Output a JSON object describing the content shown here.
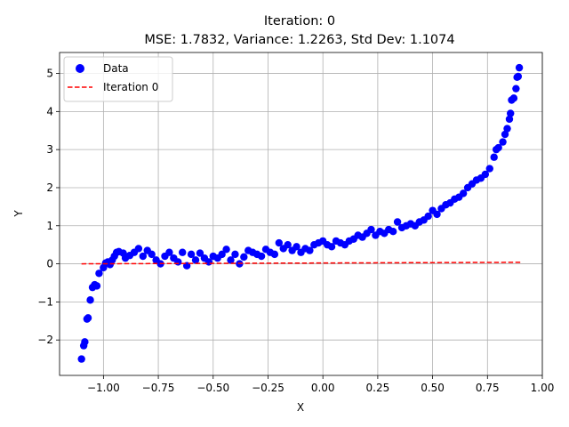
{
  "chart_data": {
    "type": "scatter",
    "title": "Iteration: 0",
    "subtitle": "MSE: 1.7832, Variance: 1.2263, Std Dev: 1.1074",
    "xlabel": "X",
    "ylabel": "Y",
    "xlim": [
      -1.2,
      1.0
    ],
    "ylim": [
      -2.93,
      5.55
    ],
    "xticks": [
      -1.0,
      -0.75,
      -0.5,
      -0.25,
      0.0,
      0.25,
      0.5,
      0.75,
      1.0
    ],
    "xtick_labels": [
      "−1.00",
      "−0.75",
      "−0.50",
      "−0.25",
      "0.00",
      "0.25",
      "0.50",
      "0.75",
      "1.00"
    ],
    "yticks": [
      -2,
      -1,
      0,
      1,
      2,
      3,
      4,
      5
    ],
    "ytick_labels": [
      "−2",
      "−1",
      "0",
      "1",
      "2",
      "3",
      "4",
      "5"
    ],
    "grid": true,
    "legend": "top-left",
    "series": [
      {
        "name": "Data",
        "kind": "scatter",
        "color": "#0000ff",
        "points": [
          [
            -1.1,
            -2.5
          ],
          [
            -1.09,
            -2.15
          ],
          [
            -1.085,
            -2.05
          ],
          [
            -1.075,
            -1.45
          ],
          [
            -1.07,
            -1.42
          ],
          [
            -1.06,
            -0.95
          ],
          [
            -1.05,
            -0.62
          ],
          [
            -1.04,
            -0.55
          ],
          [
            -1.03,
            -0.58
          ],
          [
            -1.02,
            -0.25
          ],
          [
            -1.0,
            -0.1
          ],
          [
            -0.99,
            0.02
          ],
          [
            -0.98,
            0.05
          ],
          [
            -0.97,
            -0.02
          ],
          [
            -0.96,
            0.1
          ],
          [
            -0.95,
            0.2
          ],
          [
            -0.94,
            0.3
          ],
          [
            -0.93,
            0.32
          ],
          [
            -0.91,
            0.28
          ],
          [
            -0.9,
            0.15
          ],
          [
            -0.88,
            0.22
          ],
          [
            -0.86,
            0.3
          ],
          [
            -0.84,
            0.4
          ],
          [
            -0.82,
            0.2
          ],
          [
            -0.8,
            0.35
          ],
          [
            -0.78,
            0.25
          ],
          [
            -0.76,
            0.1
          ],
          [
            -0.74,
            0.0
          ],
          [
            -0.72,
            0.2
          ],
          [
            -0.7,
            0.3
          ],
          [
            -0.68,
            0.15
          ],
          [
            -0.66,
            0.05
          ],
          [
            -0.64,
            0.3
          ],
          [
            -0.62,
            -0.05
          ],
          [
            -0.6,
            0.25
          ],
          [
            -0.58,
            0.1
          ],
          [
            -0.56,
            0.28
          ],
          [
            -0.54,
            0.15
          ],
          [
            -0.52,
            0.05
          ],
          [
            -0.5,
            0.2
          ],
          [
            -0.48,
            0.15
          ],
          [
            -0.46,
            0.25
          ],
          [
            -0.44,
            0.38
          ],
          [
            -0.42,
            0.1
          ],
          [
            -0.4,
            0.25
          ],
          [
            -0.38,
            0.0
          ],
          [
            -0.36,
            0.18
          ],
          [
            -0.34,
            0.35
          ],
          [
            -0.32,
            0.3
          ],
          [
            -0.3,
            0.25
          ],
          [
            -0.28,
            0.2
          ],
          [
            -0.26,
            0.38
          ],
          [
            -0.24,
            0.3
          ],
          [
            -0.22,
            0.25
          ],
          [
            -0.2,
            0.55
          ],
          [
            -0.18,
            0.4
          ],
          [
            -0.16,
            0.5
          ],
          [
            -0.14,
            0.35
          ],
          [
            -0.12,
            0.45
          ],
          [
            -0.1,
            0.3
          ],
          [
            -0.08,
            0.4
          ],
          [
            -0.06,
            0.35
          ],
          [
            -0.04,
            0.5
          ],
          [
            -0.02,
            0.55
          ],
          [
            0.0,
            0.6
          ],
          [
            0.02,
            0.5
          ],
          [
            0.04,
            0.45
          ],
          [
            0.06,
            0.6
          ],
          [
            0.08,
            0.55
          ],
          [
            0.1,
            0.5
          ],
          [
            0.12,
            0.6
          ],
          [
            0.14,
            0.65
          ],
          [
            0.16,
            0.75
          ],
          [
            0.18,
            0.7
          ],
          [
            0.2,
            0.8
          ],
          [
            0.22,
            0.9
          ],
          [
            0.24,
            0.75
          ],
          [
            0.26,
            0.85
          ],
          [
            0.28,
            0.8
          ],
          [
            0.3,
            0.9
          ],
          [
            0.32,
            0.85
          ],
          [
            0.34,
            1.1
          ],
          [
            0.36,
            0.95
          ],
          [
            0.38,
            1.0
          ],
          [
            0.4,
            1.05
          ],
          [
            0.42,
            1.0
          ],
          [
            0.44,
            1.1
          ],
          [
            0.46,
            1.15
          ],
          [
            0.48,
            1.25
          ],
          [
            0.5,
            1.4
          ],
          [
            0.52,
            1.3
          ],
          [
            0.54,
            1.45
          ],
          [
            0.56,
            1.55
          ],
          [
            0.58,
            1.6
          ],
          [
            0.6,
            1.7
          ],
          [
            0.62,
            1.75
          ],
          [
            0.64,
            1.85
          ],
          [
            0.66,
            2.0
          ],
          [
            0.68,
            2.1
          ],
          [
            0.7,
            2.2
          ],
          [
            0.72,
            2.25
          ],
          [
            0.74,
            2.35
          ],
          [
            0.76,
            2.5
          ],
          [
            0.78,
            2.8
          ],
          [
            0.79,
            3.0
          ],
          [
            0.8,
            3.05
          ],
          [
            0.82,
            3.2
          ],
          [
            0.83,
            3.4
          ],
          [
            0.84,
            3.55
          ],
          [
            0.85,
            3.8
          ],
          [
            0.855,
            3.95
          ],
          [
            0.86,
            4.3
          ],
          [
            0.87,
            4.35
          ],
          [
            0.88,
            4.6
          ],
          [
            0.885,
            4.9
          ],
          [
            0.89,
            4.92
          ],
          [
            0.895,
            5.15
          ]
        ]
      },
      {
        "name": "Iteration 0",
        "kind": "line",
        "color": "#ff0000",
        "dash": "dashed",
        "x": [
          -1.1,
          0.9
        ],
        "y": [
          0.0,
          0.04
        ]
      }
    ]
  }
}
